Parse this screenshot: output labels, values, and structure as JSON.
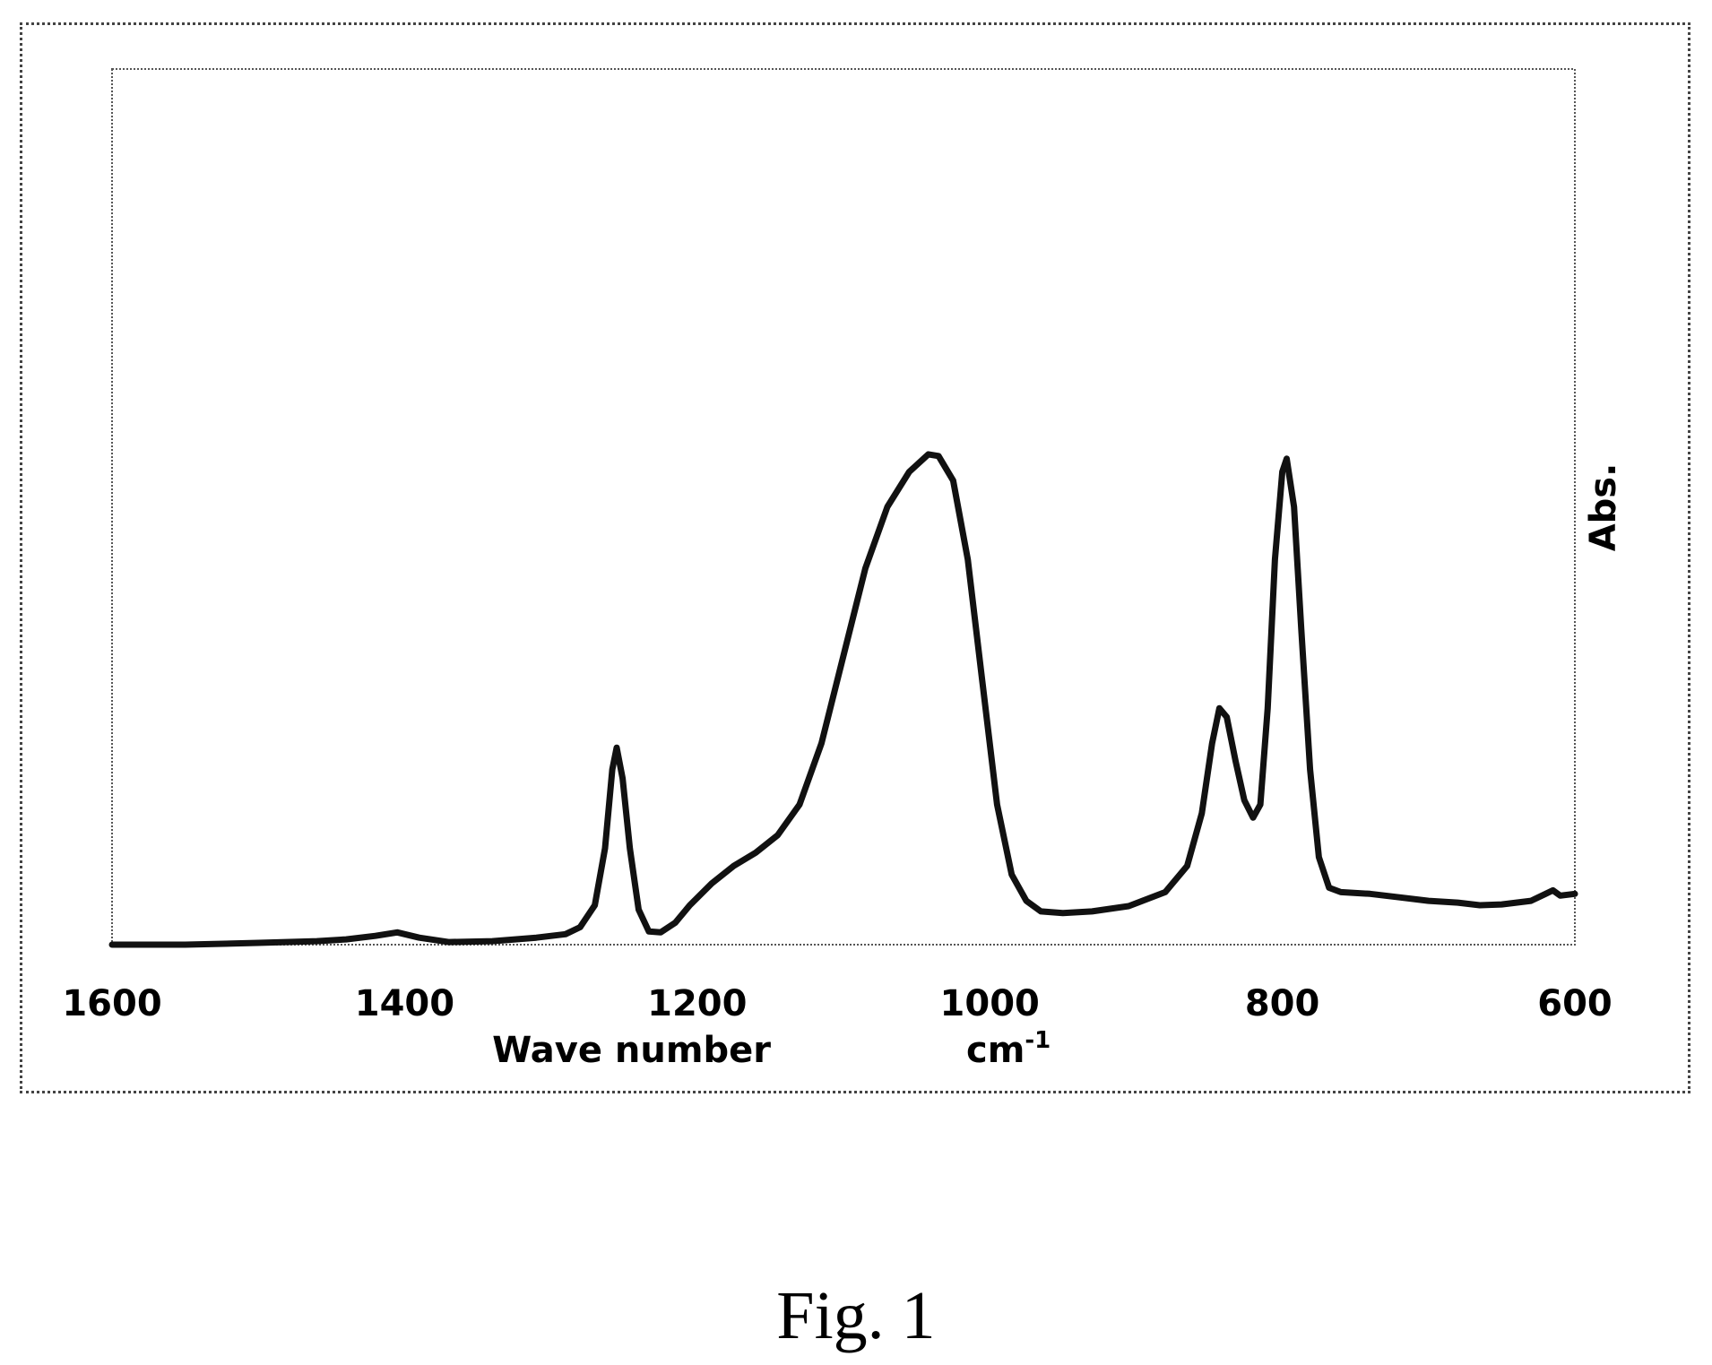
{
  "figure": {
    "caption": "Fig. 1"
  },
  "chart_data": {
    "type": "line",
    "title": "",
    "xlabel": "Wave number",
    "xlabel_unit": "cm",
    "xlabel_unit_exponent": "-1",
    "ylabel": "Abs.",
    "xlim": [
      1600,
      600
    ],
    "x_reversed": true,
    "ylim": [
      0,
      1
    ],
    "y_ticks_shown": false,
    "grid": false,
    "x_ticks": [
      1600,
      1400,
      1200,
      1000,
      800,
      600
    ],
    "x_tick_labels": [
      "1600",
      "1400",
      "1200",
      "1000",
      "800",
      "600"
    ],
    "line_color": "#111111",
    "series": [
      {
        "points": [
          [
            1600,
            0.0
          ],
          [
            1550,
            0.0
          ],
          [
            1500,
            0.002
          ],
          [
            1460,
            0.004
          ],
          [
            1440,
            0.006
          ],
          [
            1420,
            0.01
          ],
          [
            1405,
            0.014
          ],
          [
            1390,
            0.008
          ],
          [
            1370,
            0.003
          ],
          [
            1340,
            0.004
          ],
          [
            1310,
            0.008
          ],
          [
            1290,
            0.012
          ],
          [
            1280,
            0.02
          ],
          [
            1270,
            0.045
          ],
          [
            1263,
            0.11
          ],
          [
            1258,
            0.2
          ],
          [
            1255,
            0.225
          ],
          [
            1251,
            0.19
          ],
          [
            1246,
            0.11
          ],
          [
            1240,
            0.04
          ],
          [
            1233,
            0.015
          ],
          [
            1225,
            0.014
          ],
          [
            1215,
            0.025
          ],
          [
            1205,
            0.045
          ],
          [
            1190,
            0.07
          ],
          [
            1175,
            0.09
          ],
          [
            1160,
            0.105
          ],
          [
            1145,
            0.125
          ],
          [
            1130,
            0.16
          ],
          [
            1115,
            0.23
          ],
          [
            1100,
            0.33
          ],
          [
            1085,
            0.43
          ],
          [
            1070,
            0.5
          ],
          [
            1055,
            0.54
          ],
          [
            1042,
            0.56
          ],
          [
            1035,
            0.558
          ],
          [
            1025,
            0.53
          ],
          [
            1015,
            0.44
          ],
          [
            1005,
            0.3
          ],
          [
            995,
            0.16
          ],
          [
            985,
            0.08
          ],
          [
            975,
            0.05
          ],
          [
            965,
            0.038
          ],
          [
            950,
            0.036
          ],
          [
            930,
            0.038
          ],
          [
            905,
            0.044
          ],
          [
            880,
            0.06
          ],
          [
            865,
            0.09
          ],
          [
            855,
            0.15
          ],
          [
            848,
            0.23
          ],
          [
            843,
            0.27
          ],
          [
            838,
            0.26
          ],
          [
            832,
            0.21
          ],
          [
            826,
            0.165
          ],
          [
            820,
            0.145
          ],
          [
            815,
            0.16
          ],
          [
            810,
            0.27
          ],
          [
            805,
            0.44
          ],
          [
            800,
            0.54
          ],
          [
            797,
            0.555
          ],
          [
            792,
            0.5
          ],
          [
            787,
            0.36
          ],
          [
            781,
            0.2
          ],
          [
            775,
            0.1
          ],
          [
            768,
            0.065
          ],
          [
            760,
            0.06
          ],
          [
            740,
            0.058
          ],
          [
            720,
            0.054
          ],
          [
            700,
            0.05
          ],
          [
            680,
            0.048
          ],
          [
            665,
            0.045
          ],
          [
            650,
            0.046
          ],
          [
            640,
            0.048
          ],
          [
            630,
            0.05
          ],
          [
            620,
            0.058
          ],
          [
            615,
            0.062
          ],
          [
            610,
            0.056
          ],
          [
            600,
            0.058
          ]
        ]
      }
    ]
  }
}
